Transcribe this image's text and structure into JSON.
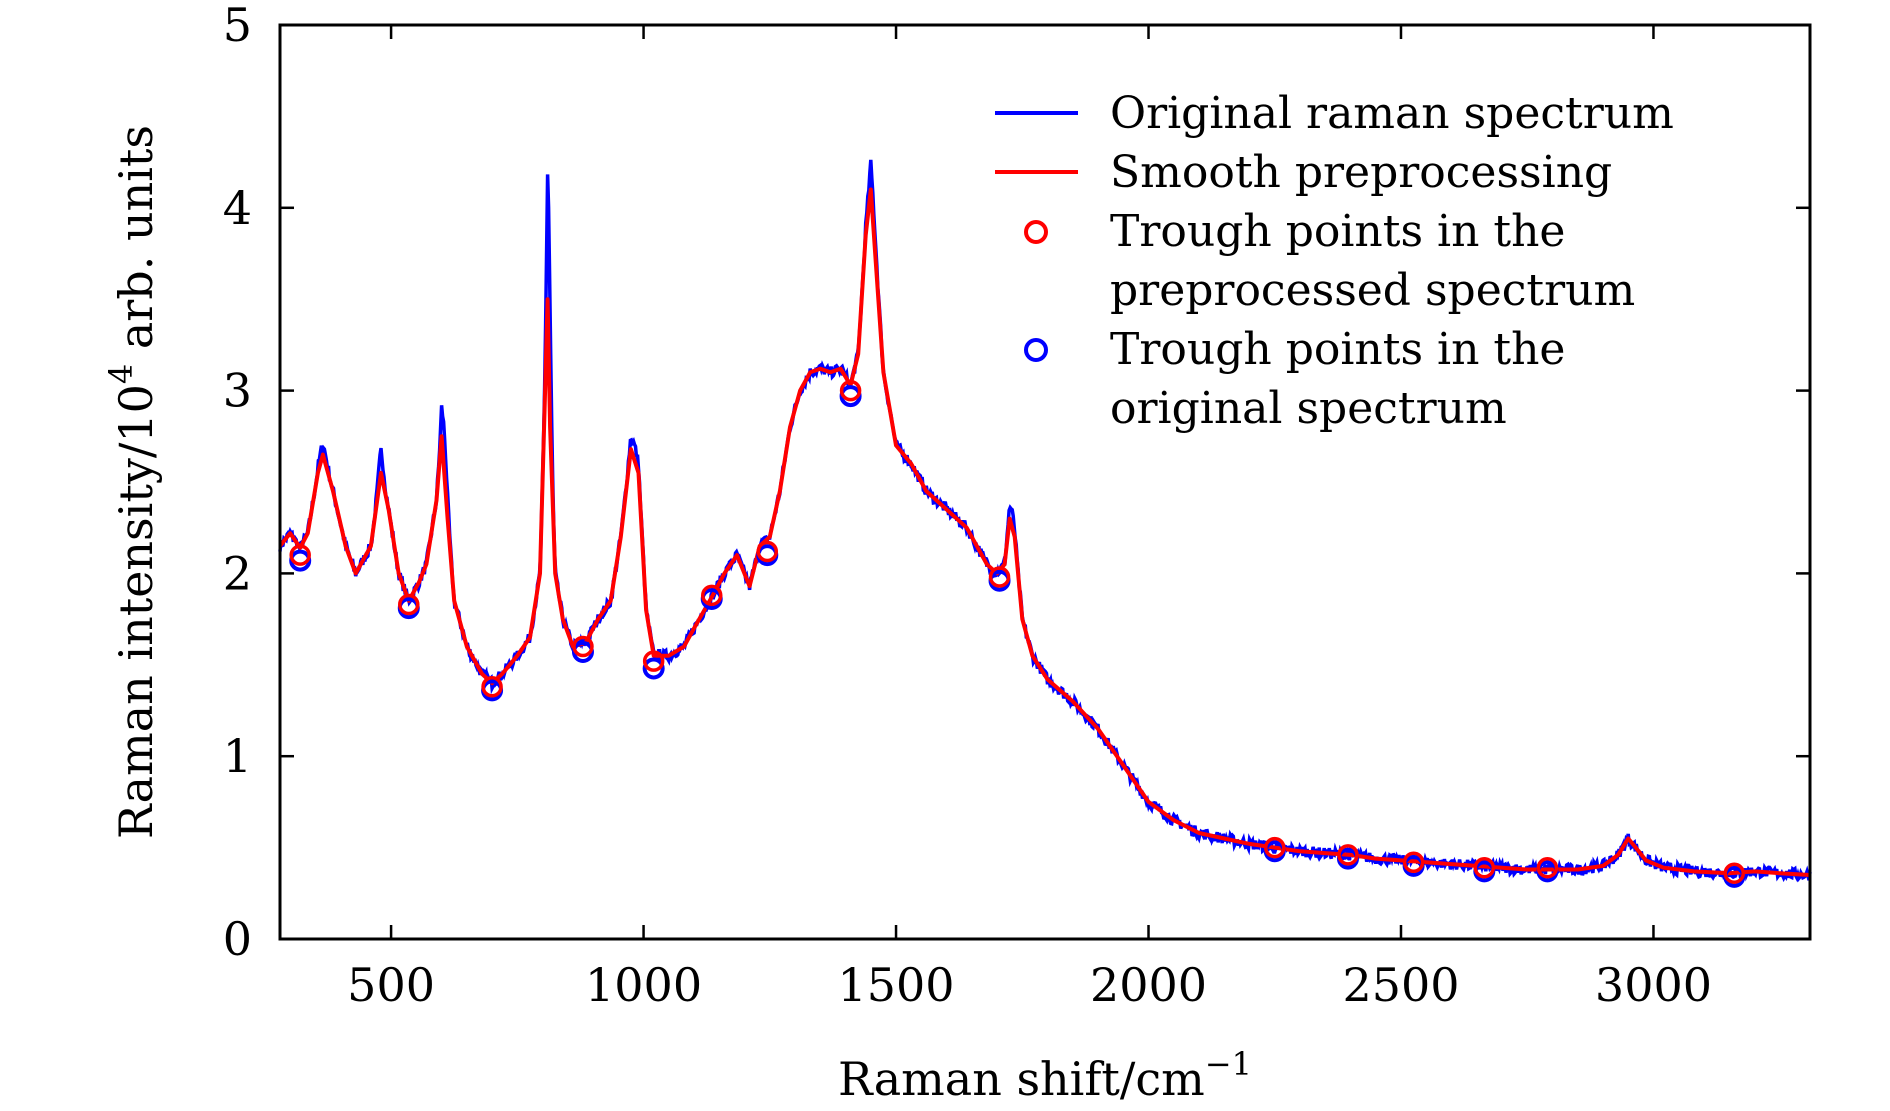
{
  "chart_data": {
    "type": "line",
    "title": "",
    "xlabel": {
      "prefix": "Raman shift/cm",
      "sup": "−1"
    },
    "ylabel": {
      "prefix": "Raman intensity/10",
      "sup": "4",
      "suffix": " arb. units"
    },
    "xlim": [
      280,
      3310
    ],
    "ylim": [
      0,
      5
    ],
    "xticks": [
      500,
      1000,
      1500,
      2000,
      2500,
      3000
    ],
    "yticks": [
      0,
      1,
      2,
      3,
      4,
      5
    ],
    "grid": false,
    "legend_position": "top-right",
    "legend": {
      "original": [
        "Original raman spectrum"
      ],
      "smooth": [
        "Smooth preprocessing"
      ],
      "trough_pre": [
        "Trough points in the",
        "preprocessed spectrum"
      ],
      "trough_orig": [
        "Trough points in the",
        "original spectrum"
      ]
    },
    "colors": {
      "original": "#0000ff",
      "smooth": "#ff0000"
    },
    "series": [
      {
        "name": "Smooth preprocessing",
        "key": "smooth",
        "x": [
          280,
          300,
          320,
          335,
          355,
          365,
          385,
          410,
          430,
          460,
          480,
          495,
          515,
          535,
          555,
          570,
          590,
          600,
          612,
          625,
          650,
          680,
          700,
          720,
          750,
          775,
          795,
          805,
          810,
          815,
          825,
          840,
          860,
          885,
          910,
          935,
          955,
          975,
          990,
          1005,
          1020,
          1050,
          1080,
          1100,
          1135,
          1160,
          1185,
          1210,
          1230,
          1250,
          1270,
          1290,
          1310,
          1330,
          1350,
          1370,
          1390,
          1410,
          1425,
          1440,
          1450,
          1460,
          1475,
          1500,
          1530,
          1560,
          1600,
          1640,
          1680,
          1700,
          1715,
          1725,
          1735,
          1750,
          1770,
          1800,
          1850,
          1900,
          1950,
          2000,
          2050,
          2100,
          2150,
          2200,
          2250,
          2300,
          2350,
          2400,
          2450,
          2500,
          2550,
          2600,
          2650,
          2700,
          2750,
          2800,
          2850,
          2900,
          2930,
          2950,
          2965,
          2985,
          3020,
          3080,
          3150,
          3200,
          3250,
          3310
        ],
        "y": [
          2.15,
          2.22,
          2.14,
          2.22,
          2.55,
          2.65,
          2.45,
          2.15,
          2.0,
          2.15,
          2.55,
          2.35,
          2.0,
          1.85,
          1.95,
          2.05,
          2.4,
          2.75,
          2.3,
          1.85,
          1.6,
          1.45,
          1.4,
          1.45,
          1.55,
          1.65,
          2.0,
          3.0,
          3.5,
          2.8,
          2.0,
          1.75,
          1.6,
          1.62,
          1.75,
          1.85,
          2.2,
          2.68,
          2.55,
          1.8,
          1.55,
          1.55,
          1.6,
          1.7,
          1.87,
          2.0,
          2.1,
          1.93,
          2.15,
          2.2,
          2.45,
          2.8,
          3.0,
          3.1,
          3.12,
          3.1,
          3.12,
          3.03,
          3.2,
          3.85,
          4.1,
          3.7,
          3.1,
          2.7,
          2.6,
          2.45,
          2.35,
          2.25,
          2.05,
          2.0,
          2.05,
          2.3,
          2.2,
          1.75,
          1.55,
          1.42,
          1.3,
          1.15,
          0.95,
          0.75,
          0.65,
          0.58,
          0.55,
          0.52,
          0.5,
          0.48,
          0.47,
          0.46,
          0.44,
          0.43,
          0.42,
          0.41,
          0.4,
          0.39,
          0.38,
          0.38,
          0.38,
          0.4,
          0.46,
          0.55,
          0.5,
          0.43,
          0.39,
          0.37,
          0.36,
          0.37,
          0.36,
          0.35
        ]
      },
      {
        "name": "Trough points in the preprocessed spectrum",
        "key": "trough_pre",
        "x": [
          320,
          535,
          700,
          880,
          1020,
          1135,
          1245,
          1410,
          1705,
          2250,
          2395,
          2525,
          2665,
          2790,
          3160
        ],
        "y": [
          2.1,
          1.83,
          1.38,
          1.6,
          1.52,
          1.88,
          2.12,
          3.0,
          1.98,
          0.5,
          0.46,
          0.42,
          0.39,
          0.39,
          0.36
        ]
      },
      {
        "name": "Trough points in the original spectrum",
        "key": "trough_orig",
        "x": [
          320,
          535,
          700,
          880,
          1020,
          1135,
          1245,
          1410,
          1705,
          2250,
          2395,
          2525,
          2665,
          2790,
          3160
        ],
        "y": [
          2.07,
          1.81,
          1.36,
          1.57,
          1.48,
          1.86,
          2.1,
          2.97,
          1.96,
          0.48,
          0.44,
          0.4,
          0.37,
          0.37,
          0.34
        ]
      }
    ]
  }
}
